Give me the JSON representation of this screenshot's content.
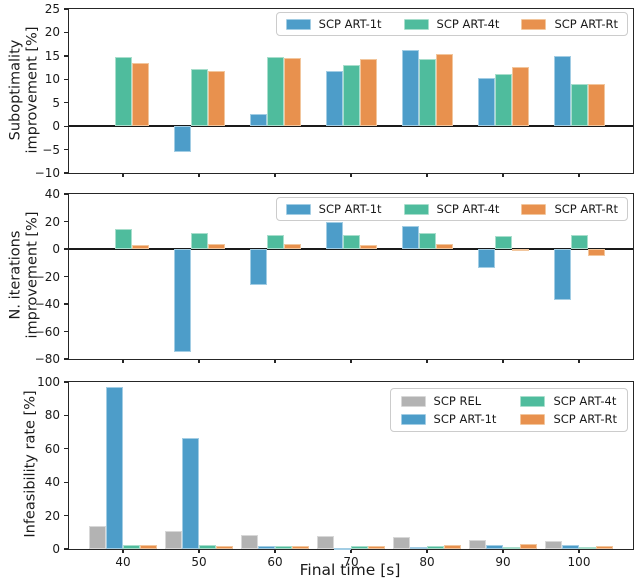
{
  "figure": {
    "background": "#ffffff",
    "text_color": "#1a1a1a",
    "spine_color": "#262626"
  },
  "series_styles": {
    "SCP REL": {
      "fill": "#b3b3b3",
      "edge": "#d8d8d8"
    },
    "SCP ART-1t": {
      "fill": "#4d9dc9",
      "edge": "#a2cde4"
    },
    "SCP ART-4t": {
      "fill": "#4fbc9d",
      "edge": "#a8decc"
    },
    "SCP ART-Rt": {
      "fill": "#e8914e",
      "edge": "#f2c69d"
    }
  },
  "chart_data": [
    {
      "type": "bar",
      "ylabel": "Suboptimality\nimprovement [%]",
      "ylim": [
        -10,
        25
      ],
      "yticks": [
        25,
        20,
        15,
        10,
        5,
        0,
        -5,
        -10
      ],
      "categories": [
        "40",
        "50",
        "60",
        "70",
        "80",
        "90",
        "100"
      ],
      "show_xticklabels": false,
      "zero_line": true,
      "grid": false,
      "legend": {
        "position": "upper-right",
        "columns": 3,
        "entries": [
          "SCP ART-1t",
          "SCP ART-4t",
          "SCP ART-Rt"
        ]
      },
      "series": [
        {
          "name": "SCP ART-1t",
          "values": [
            0,
            -5.6,
            2.6,
            11.8,
            16.2,
            10.2,
            14.9
          ]
        },
        {
          "name": "SCP ART-4t",
          "values": [
            14.7,
            12.2,
            14.8,
            13.0,
            14.4,
            11.2,
            8.9
          ]
        },
        {
          "name": "SCP ART-Rt",
          "values": [
            13.5,
            11.7,
            14.5,
            14.3,
            15.3,
            12.6,
            8.9
          ]
        }
      ]
    },
    {
      "type": "bar",
      "ylabel": "N. iterations\nimprovement [%]",
      "ylim": [
        -80,
        40
      ],
      "yticks": [
        40,
        20,
        0,
        -20,
        -40,
        -60,
        -80
      ],
      "categories": [
        "40",
        "50",
        "60",
        "70",
        "80",
        "90",
        "100"
      ],
      "show_xticklabels": false,
      "zero_line": true,
      "grid": false,
      "legend": {
        "position": "upper-right",
        "columns": 3,
        "entries": [
          "SCP ART-1t",
          "SCP ART-4t",
          "SCP ART-Rt"
        ]
      },
      "series": [
        {
          "name": "SCP ART-1t",
          "values": [
            0,
            -75,
            -26,
            19.5,
            17,
            -14,
            -37
          ]
        },
        {
          "name": "SCP ART-4t",
          "values": [
            14.5,
            12,
            10.5,
            10,
            11.5,
            9.5,
            10.5
          ]
        },
        {
          "name": "SCP ART-Rt",
          "values": [
            3,
            4,
            3.5,
            3,
            3.5,
            -1,
            -5
          ]
        }
      ]
    },
    {
      "type": "bar",
      "ylabel": "Infeasibility rate [%]",
      "xlabel": "Final time [s]",
      "ylim": [
        0,
        100
      ],
      "yticks": [
        100,
        80,
        60,
        40,
        20,
        0
      ],
      "categories": [
        "40",
        "50",
        "60",
        "70",
        "80",
        "90",
        "100"
      ],
      "show_xticklabels": true,
      "zero_line": false,
      "grid": false,
      "legend": {
        "position": "upper-right",
        "columns": 2,
        "entries": [
          "SCP REL",
          "SCP ART-4t",
          "SCP ART-1t",
          "SCP ART-Rt"
        ]
      },
      "series": [
        {
          "name": "SCP REL",
          "values": [
            14,
            11,
            8.5,
            7.5,
            7,
            5.5,
            5
          ]
        },
        {
          "name": "SCP ART-1t",
          "values": [
            97,
            66.5,
            2,
            0.5,
            1,
            2.5,
            2.5
          ]
        },
        {
          "name": "SCP ART-4t",
          "values": [
            2.5,
            2.5,
            2,
            1.5,
            1.5,
            1,
            1
          ]
        },
        {
          "name": "SCP ART-Rt",
          "values": [
            2.5,
            2,
            1.5,
            1.5,
            2.5,
            3,
            2
          ]
        }
      ]
    }
  ]
}
